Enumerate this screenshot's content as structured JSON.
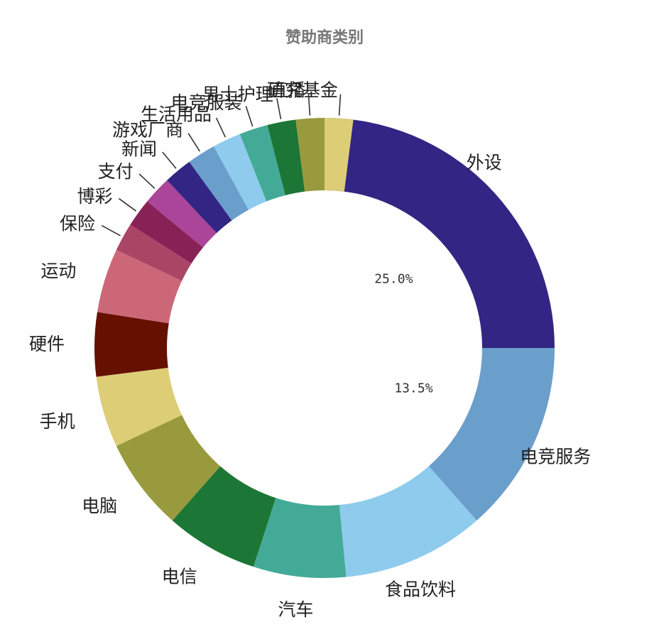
{
  "chart_data": {
    "type": "pie",
    "variant": "donut",
    "title": "赞助商类别",
    "categories": [
      "外设",
      "电竞服务",
      "食品饮料",
      "汽车",
      "电信",
      "电脑",
      "手机",
      "硬件",
      "运动",
      "保险",
      "博彩",
      "支付",
      "新闻",
      "游戏厂商",
      "生活用品",
      "电竞服装",
      "男士护理",
      "直播",
      "研究基金"
    ],
    "values": [
      25.0,
      13.5,
      10.0,
      6.5,
      6.5,
      6.5,
      5.0,
      4.5,
      4.5,
      2.0,
      2.0,
      2.0,
      2.0,
      2.0,
      2.0,
      2.0,
      2.0,
      2.0,
      2.0
    ],
    "percent_labels": [
      "25.0%",
      "13.5%"
    ],
    "colors": [
      "#332584",
      "#6a9ecb",
      "#8ecbec",
      "#44aa98",
      "#1c7636",
      "#999a3d",
      "#ddcd77",
      "#661000",
      "#cc6778",
      "#aa4566",
      "#882256",
      "#aa4599",
      "#332584",
      "#6a9ecb",
      "#8ecbec",
      "#44aa98",
      "#1c7636",
      "#999a3d",
      "#ddcd77"
    ],
    "extra_slice_color": "#cc6778"
  }
}
